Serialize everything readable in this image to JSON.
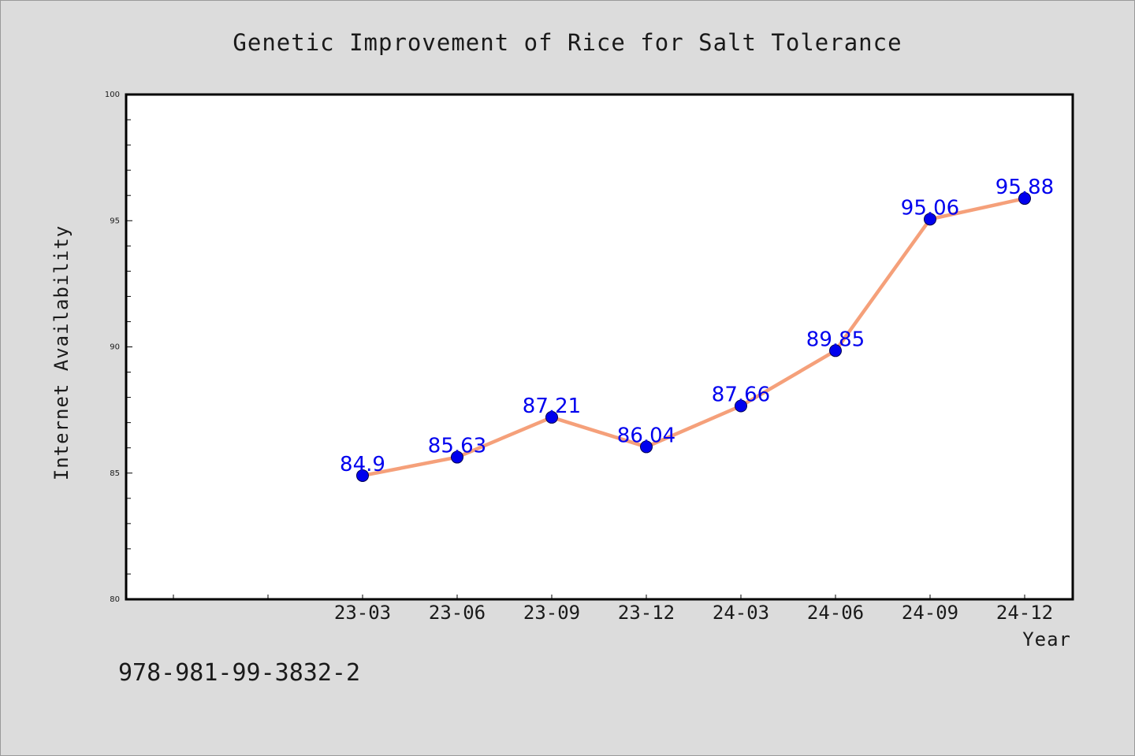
{
  "chart_data": {
    "type": "line",
    "title": "Genetic Improvement of Rice for Salt Tolerance",
    "xlabel": "Year",
    "ylabel": "Internet Availability",
    "ylim": [
      80,
      100
    ],
    "y_ticks": [
      80,
      85,
      90,
      95,
      100
    ],
    "categories": [
      "23-03",
      "23-06",
      "23-09",
      "23-12",
      "24-03",
      "24-06",
      "24-09",
      "24-12"
    ],
    "series": [
      {
        "values": [
          84.9,
          85.63,
          87.21,
          86.04,
          87.66,
          89.85,
          95.06,
          95.88
        ],
        "labels": [
          "84.9",
          "85.63",
          "87.21",
          "86.04",
          "87.66",
          "89.85",
          "95.06",
          "95.88"
        ]
      }
    ],
    "grid": false,
    "line_color": "#f5a07a",
    "marker_color": "#0000ee",
    "label_color": "#0000ee"
  },
  "footer": {
    "isbn": "978-981-99-3832-2"
  }
}
